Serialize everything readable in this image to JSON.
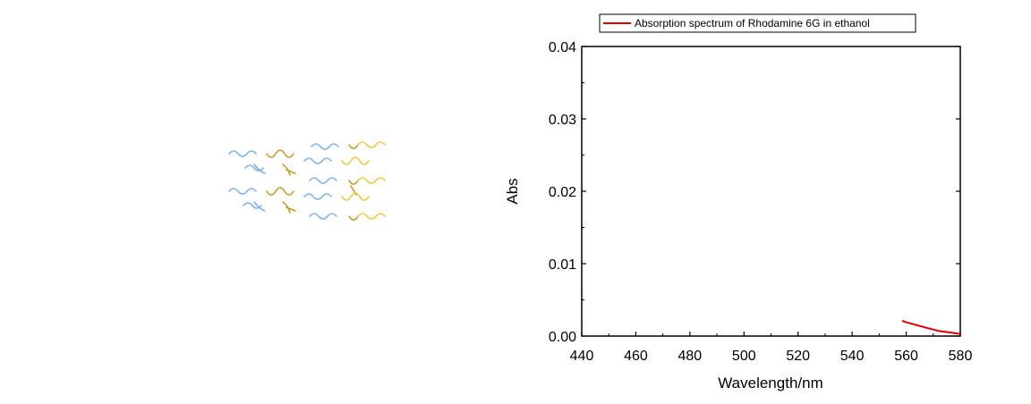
{
  "colors": {
    "series": "#e00000",
    "axis": "#000000",
    "decor_blue": "#7fb0e6",
    "decor_gold": "#c89a2a",
    "decor_yellow": "#e8c84a"
  },
  "decor_image": {
    "icon": "dna-strands-graphic"
  },
  "chart_data": {
    "type": "line",
    "title": "",
    "xlabel": "Wavelength/nm",
    "ylabel": "Abs",
    "xlim": [
      440,
      580
    ],
    "ylim": [
      0.0,
      0.04
    ],
    "x_ticks": [
      440,
      460,
      480,
      500,
      520,
      540,
      560,
      580
    ],
    "x_tick_labels": [
      "440",
      "460",
      "480",
      "500",
      "520",
      "540",
      "560",
      "580"
    ],
    "y_ticks": [
      0.0,
      0.01,
      0.02,
      0.03,
      0.04
    ],
    "y_tick_labels": [
      "0.00",
      "0.01",
      "0.02",
      "0.03",
      "0.04"
    ],
    "legend_position": "top",
    "grid": false,
    "series": [
      {
        "name": "Absorption spectrum of Rhodamine 6G in ethanol",
        "segments": [
          {
            "x": [
              440,
              440.3
            ],
            "y": [
              0.0018,
              0.0017
            ]
          },
          {
            "x": [
              558.5,
              560,
              562,
              564,
              566,
              568,
              570,
              572,
              574,
              576,
              578,
              580
            ],
            "y": [
              0.0021,
              0.0019,
              0.0017,
              0.0015,
              0.0013,
              0.0011,
              0.0009,
              0.0007,
              0.0006,
              0.0005,
              0.0004,
              0.0003
            ]
          }
        ]
      }
    ]
  }
}
